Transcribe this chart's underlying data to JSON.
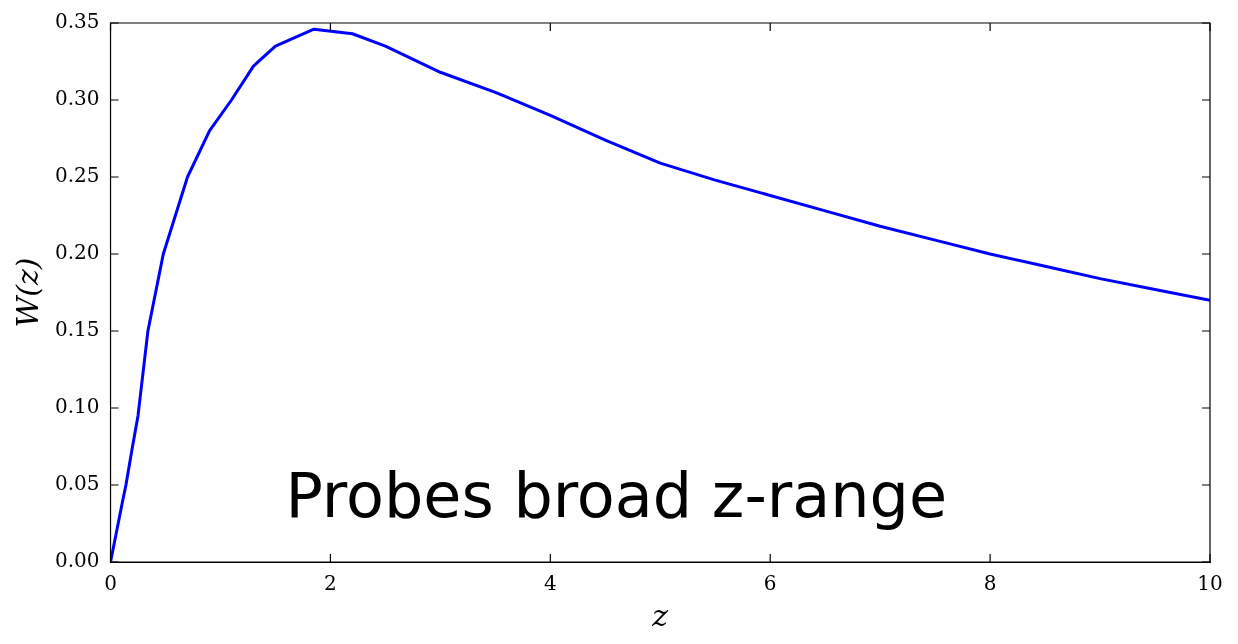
{
  "chart_data": {
    "type": "line",
    "xlabel": "z",
    "ylabel": "W(z)",
    "annotations": [
      "Probes broad z-range"
    ],
    "x": [
      0,
      0.05,
      0.1,
      0.14,
      0.2,
      0.25,
      0.34,
      0.48,
      0.7,
      0.9,
      1.1,
      1.3,
      1.5,
      1.85,
      2.2,
      2.5,
      3,
      3.5,
      4,
      4.5,
      5,
      5.5,
      6,
      6.5,
      7,
      7.5,
      8,
      8.5,
      9,
      9.5,
      10
    ],
    "series": [
      {
        "color": "#0000ff",
        "values": [
          0,
          0.018,
          0.036,
          0.05,
          0.075,
          0.095,
          0.15,
          0.2,
          0.25,
          0.28,
          0.3,
          0.322,
          0.335,
          0.346,
          0.343,
          0.335,
          0.318,
          0.305,
          0.29,
          0.274,
          0.259,
          0.248,
          0.238,
          0.228,
          0.218,
          0.209,
          0.2,
          0.192,
          0.184,
          0.177,
          0.17
        ]
      }
    ],
    "xlim": [
      0,
      10
    ],
    "xticks": [
      0,
      2,
      4,
      6,
      8,
      10
    ],
    "ylim": [
      0,
      0.35
    ],
    "yticks": [
      {
        "value": 0,
        "label": "0.00"
      },
      {
        "value": 0.05,
        "label": "0.05"
      },
      {
        "value": 0.1,
        "label": "0.10"
      },
      {
        "value": 0.15,
        "label": "0.15"
      },
      {
        "value": 0.2,
        "label": "0.20"
      },
      {
        "value": 0.25,
        "label": "0.25"
      },
      {
        "value": 0.3,
        "label": "0.30"
      },
      {
        "value": 0.35,
        "label": "0.35"
      }
    ],
    "grid": false,
    "legend": false,
    "marker": "none",
    "line_style": "solid"
  }
}
